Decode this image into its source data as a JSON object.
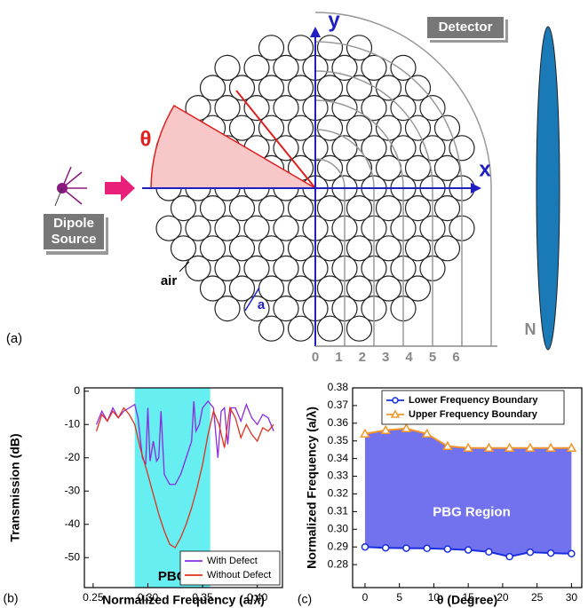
{
  "diagram": {
    "panel_label": "(a)",
    "y_axis": "y",
    "x_axis": "x",
    "angle": "θ",
    "detector": "Detector",
    "source": [
      "Dipole",
      "Source"
    ],
    "air": "air",
    "lattice_constant": "a",
    "n_axis": "N",
    "n_labels": [
      "0",
      "1",
      "2",
      "3",
      "4",
      "5",
      "6"
    ]
  },
  "chart_data": [
    {
      "type": "line",
      "panel_label": "(b)",
      "x_label": "Normalized Frequency (a/λ)",
      "y_label": "Transmission (dB)",
      "xlim": [
        0.242,
        0.423
      ],
      "ylim": [
        -59,
        1
      ],
      "xticks": [
        0.25,
        {
          "value": 0.3,
          "label": "0.30"
        },
        0.35,
        {
          "value": 0.4,
          "label": "0.40"
        }
      ],
      "yticks": [
        0,
        -10,
        -20,
        -30,
        -40,
        -50
      ],
      "band": {
        "label": "PBG",
        "xlim": [
          0.288,
          0.357
        ],
        "color": "#66eef0"
      },
      "legend": "lower right",
      "series": [
        {
          "name": "With Defect",
          "color": "#8a2be2",
          "x": [
            0.253,
            0.258,
            0.263,
            0.268,
            0.273,
            0.278,
            0.283,
            0.288,
            0.291,
            0.295,
            0.298,
            0.3,
            0.302,
            0.305,
            0.308,
            0.31,
            0.312,
            0.315,
            0.32,
            0.325,
            0.33,
            0.335,
            0.34,
            0.342,
            0.344,
            0.347,
            0.35,
            0.355,
            0.36,
            0.364,
            0.367,
            0.37,
            0.373,
            0.376,
            0.38,
            0.385,
            0.39,
            0.395,
            0.4,
            0.405,
            0.41,
            0.415
          ],
          "values": [
            -10,
            -6,
            -9,
            -5,
            -8,
            -6,
            -5,
            -4,
            -8,
            -20,
            -22,
            -5,
            -21,
            -15,
            -21,
            -20,
            -6,
            -25,
            -28,
            -28,
            -25,
            -20,
            -15,
            -3,
            -12,
            -10,
            -5,
            -3,
            -5,
            -20,
            -6,
            -5,
            -16,
            -5,
            -5,
            -9,
            -4,
            -8,
            -10,
            -7,
            -8,
            -12
          ]
        },
        {
          "name": "Without Defect",
          "color": "#e0301e",
          "x": [
            0.253,
            0.258,
            0.263,
            0.268,
            0.273,
            0.278,
            0.283,
            0.288,
            0.293,
            0.3,
            0.305,
            0.31,
            0.315,
            0.32,
            0.325,
            0.33,
            0.335,
            0.34,
            0.345,
            0.35,
            0.355,
            0.36,
            0.365,
            0.37,
            0.375,
            0.38,
            0.385,
            0.39,
            0.395,
            0.4,
            0.405,
            0.41,
            0.415
          ],
          "values": [
            -12,
            -7,
            -9,
            -6,
            -8,
            -5,
            -7,
            -10,
            -17,
            -25,
            -31,
            -37,
            -42,
            -46,
            -47,
            -44,
            -40,
            -35,
            -29,
            -22,
            -13,
            -6,
            -10,
            -17,
            -5,
            -8,
            -14,
            -10,
            -13,
            -15,
            -11,
            -12,
            -10
          ]
        }
      ]
    },
    {
      "type": "line",
      "panel_label": "(c)",
      "x_label": "θ (Degree)",
      "y_label": "Normalized Frequency (a/λ)",
      "xlim": [
        -1.8,
        31.5
      ],
      "ylim": [
        0.267,
        0.38
      ],
      "xticks": [
        0,
        5,
        10,
        15,
        20,
        25,
        30
      ],
      "yticks": [
        0.28,
        0.29,
        {
          "value": 0.3,
          "label": "0.30"
        },
        0.31,
        0.32,
        0.33,
        0.34,
        0.35,
        0.36,
        0.37,
        0.38
      ],
      "fill_between": {
        "label": "PBG Region",
        "color": "#7272ee"
      },
      "legend": "upper right",
      "series": [
        {
          "name": "Lower Frequency Boundary",
          "color": "#1a2ee0",
          "marker": "circle",
          "x": [
            0,
            3,
            6,
            9,
            12,
            15,
            18,
            21,
            24,
            27,
            30
          ],
          "values": [
            0.29,
            0.2895,
            0.2893,
            0.2892,
            0.2888,
            0.2883,
            0.2872,
            0.2845,
            0.287,
            0.2865,
            0.2862
          ]
        },
        {
          "name": "Upper Frequency Boundary",
          "color": "#f0962a",
          "marker": "triangle",
          "x": [
            0,
            3,
            6,
            9,
            12,
            15,
            18,
            21,
            24,
            27,
            30
          ],
          "values": [
            0.354,
            0.356,
            0.357,
            0.354,
            0.347,
            0.346,
            0.346,
            0.346,
            0.346,
            0.346,
            0.346
          ]
        }
      ]
    }
  ]
}
